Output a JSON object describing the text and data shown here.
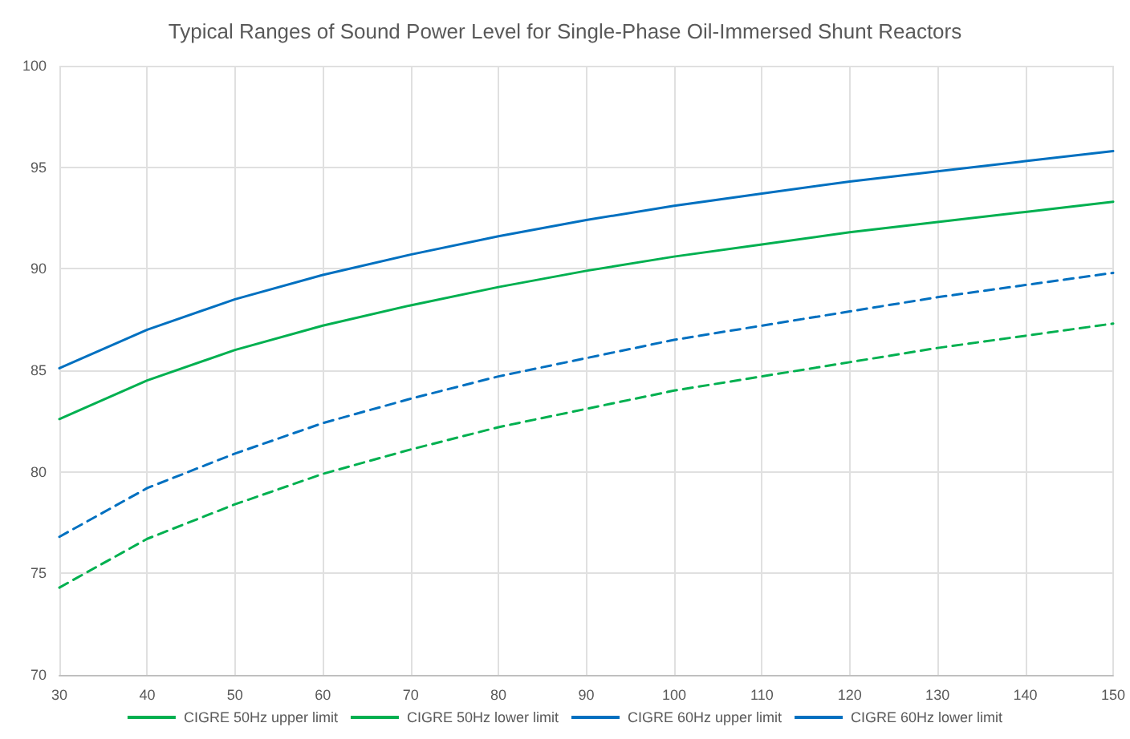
{
  "chart_data": {
    "type": "line",
    "title": "Typical Ranges of Sound Power Level for Single-Phase Oil-Immersed Shunt Reactors",
    "x": [
      30,
      40,
      50,
      60,
      70,
      80,
      90,
      100,
      110,
      120,
      130,
      140,
      150
    ],
    "series": [
      {
        "name": "CIGRE 50Hz upper limit",
        "color": "#00b050",
        "line_style": "solid",
        "values": [
          82.6,
          84.5,
          86.0,
          87.2,
          88.2,
          89.1,
          89.9,
          90.6,
          91.2,
          91.8,
          92.3,
          92.8,
          93.3
        ]
      },
      {
        "name": "CIGRE 50Hz lower limit",
        "color": "#00b050",
        "line_style": "dashed",
        "values": [
          74.3,
          76.7,
          78.4,
          79.9,
          81.1,
          82.2,
          83.1,
          84.0,
          84.7,
          85.4,
          86.1,
          86.7,
          87.3
        ]
      },
      {
        "name": "CIGRE 60Hz upper limit",
        "color": "#0070c0",
        "line_style": "solid",
        "values": [
          85.1,
          87.0,
          88.5,
          89.7,
          90.7,
          91.6,
          92.4,
          93.1,
          93.7,
          94.3,
          94.8,
          95.3,
          95.8
        ]
      },
      {
        "name": "CIGRE 60Hz lower limit",
        "color": "#0070c0",
        "line_style": "dashed",
        "values": [
          76.8,
          79.2,
          80.9,
          82.4,
          83.6,
          84.7,
          85.6,
          86.5,
          87.2,
          87.9,
          88.6,
          89.2,
          89.8
        ]
      }
    ],
    "xlim": [
      30,
      150
    ],
    "xticks": [
      30,
      40,
      50,
      60,
      70,
      80,
      90,
      100,
      110,
      120,
      130,
      140,
      150
    ],
    "ylim": [
      70,
      100
    ],
    "yticks": [
      70,
      75,
      80,
      85,
      90,
      95,
      100
    ],
    "grid": true,
    "legend": "bottom",
    "marker": "none"
  }
}
